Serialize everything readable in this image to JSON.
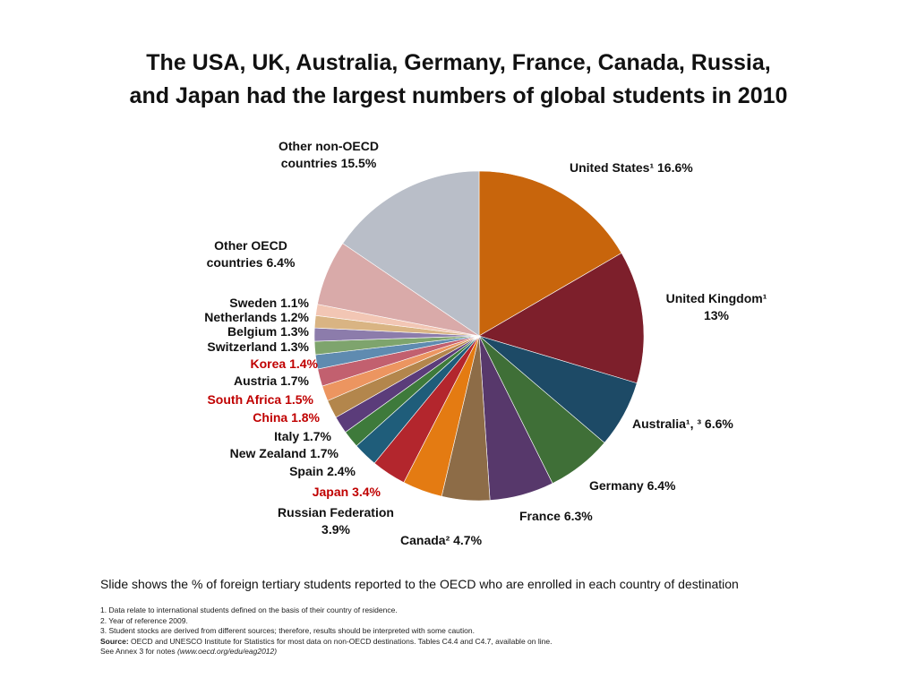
{
  "chart_data": {
    "type": "pie",
    "title": "The USA, UK, Australia, Germany, France, Canada, Russia,",
    "subtitle": "and Japan had the largest numbers of global students in 2010",
    "categories": [
      "United States¹",
      "United Kingdom¹",
      "Australia¹, ³",
      "Germany",
      "France",
      "Canada²",
      "Russian Federation",
      "Japan",
      "Spain",
      "New Zealand",
      "Italy",
      "China",
      "South Africa",
      "Austria",
      "Korea",
      "Switzerland",
      "Belgium",
      "Netherlands",
      "Sweden",
      "Other OECD countries",
      "Other non-OECD countries"
    ],
    "values": [
      16.6,
      13,
      6.6,
      6.4,
      6.3,
      4.7,
      3.9,
      3.4,
      2.4,
      1.7,
      1.7,
      1.8,
      1.5,
      1.7,
      1.4,
      1.3,
      1.3,
      1.2,
      1.1,
      6.4,
      15.5
    ],
    "value_labels": [
      "16.6%",
      "13%",
      "6.6%",
      "6.4%",
      "6.3%",
      "4.7%",
      "3.9%",
      "3.4%",
      "2.4%",
      "1.7%",
      "1.7%",
      "1.8%",
      "1.5%",
      "1.7%",
      "1.4%",
      "1.3%",
      "1.3%",
      "1.2%",
      "1.1%",
      "6.4%",
      "15.5%"
    ],
    "colors": [
      "#c8650c",
      "#7d1f2b",
      "#1d4a66",
      "#3f6f37",
      "#57386b",
      "#8d6c47",
      "#e47b12",
      "#b3262d",
      "#1f5d7a",
      "#3e7a3b",
      "#5b3c7a",
      "#b3864c",
      "#ec9560",
      "#c2606f",
      "#5f8bb0",
      "#7ea46d",
      "#8c7cab",
      "#d9b483",
      "#f2c6b4",
      "#d9aaa9",
      "#b9bec8"
    ],
    "label_colors": [
      "#111111",
      "#111111",
      "#111111",
      "#111111",
      "#111111",
      "#111111",
      "#111111",
      "#c00000",
      "#111111",
      "#111111",
      "#111111",
      "#c00000",
      "#c00000",
      "#111111",
      "#c00000",
      "#111111",
      "#111111",
      "#111111",
      "#111111",
      "#111111",
      "#111111"
    ]
  },
  "caption": "Slide shows the % of foreign tertiary students reported to the OECD who are enrolled in each country of destination",
  "footnotes": [
    "1. Data relate to international students defined on the basis of their country of residence.",
    "2. Year of reference 2009.",
    "3. Student stocks are derived from different sources; therefore, results should be interpreted with some caution."
  ],
  "source_label": "Source:",
  "source_text": "OECD and UNESCO Institute for Statistics for most data on non-OECD destinations. Tables C4.4 and C4.7, available on line.",
  "annex_text": "See Annex 3 for notes",
  "annex_link": "(www.oecd.org/edu/eag2012)"
}
